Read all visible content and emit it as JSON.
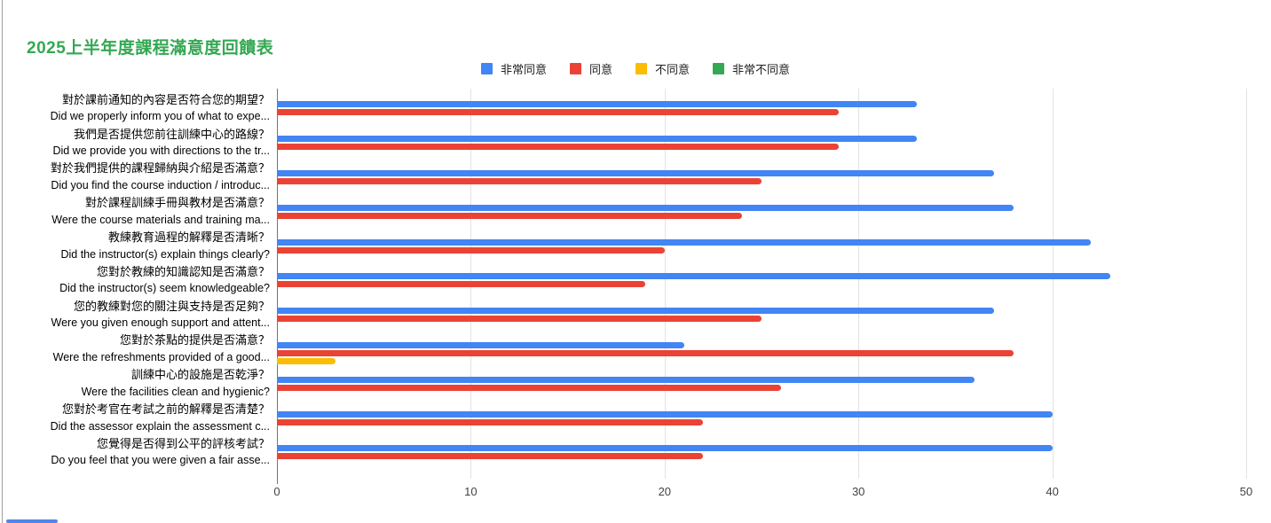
{
  "title": "2025上半年度課程滿意度回饋表",
  "title_color": "#34a853",
  "legend": [
    {
      "label": "非常同意",
      "color": "#4285f4"
    },
    {
      "label": "同意",
      "color": "#ea4335"
    },
    {
      "label": "不同意",
      "color": "#fbbc04"
    },
    {
      "label": "非常不同意",
      "color": "#34a853"
    }
  ],
  "chart_data": {
    "type": "bar",
    "orientation": "horizontal",
    "title": "2025上半年度課程滿意度回饋表",
    "legend_position": "top",
    "grid": true,
    "xlim": [
      0,
      50
    ],
    "x_ticks": [
      0,
      10,
      20,
      30,
      40,
      50
    ],
    "categories": [
      {
        "zh": "對於課前通知的內容是否符合您的期望？",
        "en": "Did we properly inform you of what to expe..."
      },
      {
        "zh": "我們是否提供您前往訓練中心的路線？",
        "en": "Did we provide you with directions to the tr..."
      },
      {
        "zh": "對於我們提供的課程歸納與介紹是否滿意？",
        "en": "Did you find the course induction / introduc..."
      },
      {
        "zh": "對於課程訓練手冊與教材是否滿意？",
        "en": "Were the course materials and training ma..."
      },
      {
        "zh": "教練教育過程的解釋是否清晰？",
        "en": "Did the instructor(s) explain things clearly?"
      },
      {
        "zh": "您對於教練的知識認知是否滿意？",
        "en": "Did the instructor(s) seem knowledgeable?"
      },
      {
        "zh": "您的教練對您的關注與支持是否足夠？",
        "en": "Were you given enough support and attent..."
      },
      {
        "zh": "您對於茶點的提供是否滿意？",
        "en": "Were the refreshments provided of a good..."
      },
      {
        "zh": "訓練中心的設施是否乾淨？",
        "en": "Were the facilities clean and hygienic?"
      },
      {
        "zh": "您對於考官在考試之前的解釋是否清楚？",
        "en": "Did the assessor explain the assessment c..."
      },
      {
        "zh": "您覺得是否得到公平的評核考試？",
        "en": "Do you feel that you were given a fair asse..."
      }
    ],
    "series": [
      {
        "name": "非常同意",
        "color": "#4285f4",
        "values": [
          33,
          33,
          37,
          38,
          42,
          43,
          37,
          21,
          36,
          40,
          40
        ]
      },
      {
        "name": "同意",
        "color": "#ea4335",
        "values": [
          29,
          29,
          25,
          24,
          20,
          19,
          25,
          38,
          26,
          22,
          22
        ]
      },
      {
        "name": "不同意",
        "color": "#fbbc04",
        "values": [
          0,
          0,
          0,
          0,
          0,
          0,
          0,
          3,
          0,
          0,
          0
        ]
      },
      {
        "name": "非常不同意",
        "color": "#34a853",
        "values": [
          0,
          0,
          0,
          0,
          0,
          0,
          0,
          0,
          0,
          0,
          0
        ]
      }
    ]
  },
  "layout_colors": {
    "gridline": "#e3e3e3",
    "axis_line": "#757575",
    "tick_label": "#424242",
    "scroll_thumb": "#4e86ec"
  }
}
